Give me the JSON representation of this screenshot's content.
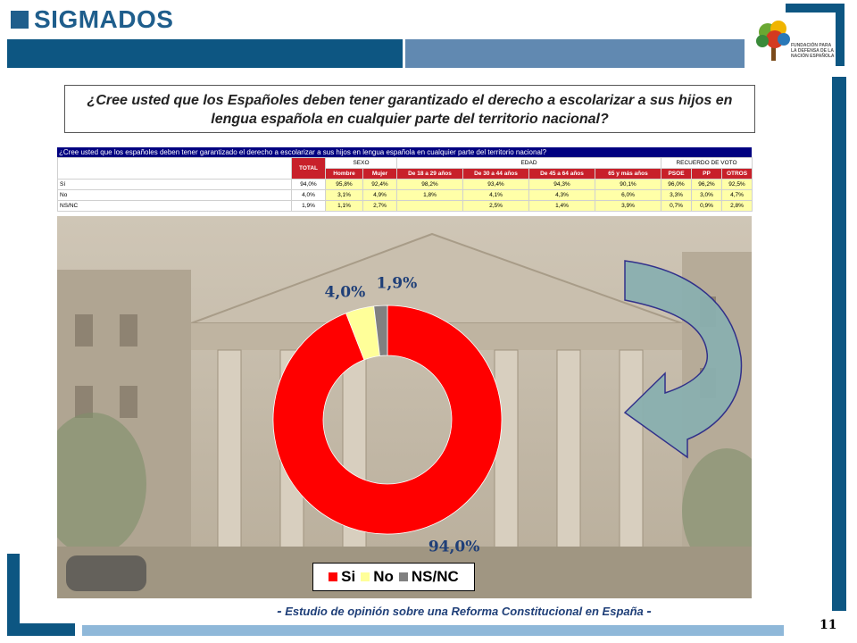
{
  "header": {
    "logo_text": "SIGMADOS",
    "foundation_text": "FUNDACIÓN PARA LA DEFENSA DE LA NACIÓN ESPAÑOLA"
  },
  "question": "¿Cree usted que los Españoles deben tener garantizado el derecho a escolarizar a sus hijos en lengua española en cualquier parte del territorio nacional?",
  "table": {
    "title": "¿Cree usted que los españoles deben tener garantizado el derecho a escolarizar a sus hijos en lengua española en cualquier parte del territorio nacional?",
    "total_label": "TOTAL",
    "groups": [
      "SEXO",
      "EDAD",
      "RECUERDO DE VOTO"
    ],
    "columns": [
      "Hombre",
      "Mujer",
      "De 18 a 29 años",
      "De 30 a 44 años",
      "De 45 a 64 años",
      "65 y más años",
      "PSOE",
      "PP",
      "OTROS"
    ],
    "rows": [
      {
        "label": "Sí",
        "total": "94,0%",
        "values": [
          "95,8%",
          "92,4%",
          "98,2%",
          "93,4%",
          "94,3%",
          "90,1%",
          "96,0%",
          "96,2%",
          "92,5%"
        ]
      },
      {
        "label": "No",
        "total": "4,0%",
        "values": [
          "3,1%",
          "4,9%",
          "1,8%",
          "4,1%",
          "4,3%",
          "6,0%",
          "3,3%",
          "3,0%",
          "4,7%"
        ]
      },
      {
        "label": "NS/NC",
        "total": "1,9%",
        "values": [
          "1,1%",
          "2,7%",
          "",
          "2,5%",
          "1,4%",
          "3,9%",
          "0,7%",
          "0,9%",
          "2,8%"
        ]
      }
    ]
  },
  "chart_data": {
    "type": "pie",
    "donut": true,
    "categories": [
      "Si",
      "No",
      "NS/NC"
    ],
    "values": [
      94.0,
      4.0,
      1.9
    ],
    "labels": [
      "94,0%",
      "4,0%",
      "1,9%"
    ],
    "colors": [
      "#ff0000",
      "#ffff99",
      "#808080"
    ],
    "legend_position": "bottom"
  },
  "legend": [
    "Si",
    "No",
    "NS/NC"
  ],
  "footer": {
    "dash": "-",
    "text": "Estudio de opinión sobre una Reforma Constitucional en España"
  },
  "page_number": "11"
}
